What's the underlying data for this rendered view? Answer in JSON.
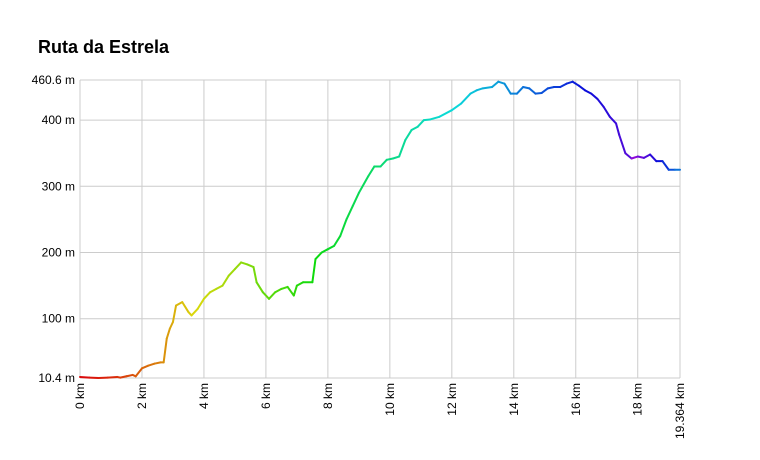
{
  "chart_data": {
    "type": "line",
    "title": "Ruta da Estrela",
    "xlabel": "",
    "ylabel": "",
    "x_unit": "km",
    "y_unit": "m",
    "xlim": [
      0,
      19.364
    ],
    "ylim": [
      10.4,
      460.6
    ],
    "x_ticks": [
      0,
      2,
      4,
      6,
      8,
      10,
      12,
      14,
      16,
      18,
      19.364
    ],
    "x_tick_labels": [
      "0 km",
      "2 km",
      "4 km",
      "6 km",
      "8 km",
      "10 km",
      "12 km",
      "14 km",
      "16 km",
      "18 km",
      "19.364 km"
    ],
    "y_ticks": [
      10.4,
      100,
      200,
      300,
      400,
      460.6
    ],
    "y_tick_labels": [
      "10.4 m",
      "100 m",
      "200 m",
      "300 m",
      "400 m",
      "460.6 m"
    ],
    "grid": true,
    "legend": "none",
    "color_scale": "rainbow gradient along the route (red at start, through yellow, green, cyan, blue, violet, to blue at end)",
    "series": [
      {
        "x": [
          0,
          0.3,
          0.6,
          0.9,
          1.2,
          1.3,
          1.5,
          1.7,
          1.8,
          2.0,
          2.2,
          2.4,
          2.6,
          2.7,
          2.8,
          2.9,
          3.0,
          3.1,
          3.3,
          3.5,
          3.6,
          3.8,
          4.0,
          4.2,
          4.4,
          4.6,
          4.8,
          5.0,
          5.2,
          5.4,
          5.6,
          5.7,
          5.9,
          6.1,
          6.3,
          6.5,
          6.7,
          6.9,
          7.0,
          7.2,
          7.5,
          7.6,
          7.8,
          8.0,
          8.2,
          8.4,
          8.6,
          8.8,
          9.0,
          9.3,
          9.5,
          9.7,
          9.9,
          10.1,
          10.3,
          10.5,
          10.7,
          10.9,
          11.1,
          11.3,
          11.6,
          12.0,
          12.3,
          12.6,
          12.8,
          13.0,
          13.3,
          13.5,
          13.7,
          13.9,
          14.1,
          14.3,
          14.5,
          14.7,
          14.9,
          15.1,
          15.3,
          15.5,
          15.7,
          15.9,
          16.1,
          16.3,
          16.5,
          16.7,
          16.9,
          17.1,
          17.3,
          17.4,
          17.6,
          17.8,
          18.0,
          18.2,
          18.4,
          18.6,
          18.8,
          19.0,
          19.2,
          19.364
        ],
        "y": [
          12,
          11,
          10.4,
          11,
          12,
          11,
          13,
          15,
          13,
          25,
          29,
          32,
          34,
          34,
          70,
          85,
          95,
          120,
          125,
          110,
          105,
          115,
          130,
          140,
          145,
          150,
          165,
          175,
          185,
          182,
          178,
          155,
          140,
          130,
          140,
          145,
          148,
          135,
          150,
          155,
          155,
          190,
          200,
          205,
          210,
          225,
          250,
          270,
          290,
          315,
          330,
          330,
          340,
          342,
          345,
          370,
          385,
          390,
          400,
          401,
          405,
          415,
          425,
          440,
          445,
          448,
          450,
          458,
          455,
          440,
          440,
          450,
          448,
          440,
          441,
          448,
          450,
          450,
          455,
          458,
          452,
          445,
          440,
          432,
          420,
          405,
          395,
          378,
          350,
          342,
          345,
          343,
          348,
          338,
          338,
          325,
          325,
          325
        ]
      }
    ]
  }
}
